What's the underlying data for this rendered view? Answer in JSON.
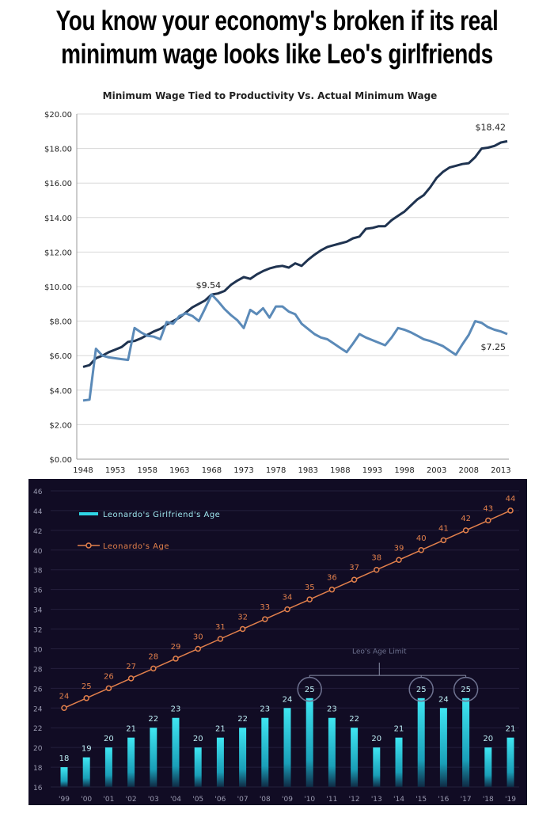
{
  "headline": {
    "line1": "You know your economy's broken if its real",
    "line2": "minimum wage looks like Leo's girlfriends"
  },
  "chart_data": [
    {
      "type": "line",
      "title": "Minimum Wage Tied to Productivity Vs. Actual Minimum Wage",
      "xlabel": "",
      "ylabel": "",
      "ylim": [
        0,
        20
      ],
      "xlim": [
        1948,
        2014
      ],
      "y_ticks": [
        "$0.00",
        "$2.00",
        "$4.00",
        "$6.00",
        "$8.00",
        "$10.00",
        "$12.00",
        "$14.00",
        "$16.00",
        "$18.00",
        "$20.00"
      ],
      "x_ticks": [
        "1948",
        "1953",
        "1958",
        "1963",
        "1968",
        "1973",
        "1978",
        "1983",
        "1988",
        "1993",
        "1998",
        "2003",
        "2008",
        "2013"
      ],
      "grid": true,
      "x_start": 1948,
      "colors": {
        "productivity": "#1f3350",
        "actual": "#5b8ab8"
      },
      "series": [
        {
          "key": "productivity",
          "values": [
            5.35,
            5.45,
            5.85,
            6.0,
            6.2,
            6.35,
            6.5,
            6.8,
            6.85,
            7.0,
            7.2,
            7.4,
            7.55,
            7.8,
            8.0,
            8.2,
            8.5,
            8.8,
            9.0,
            9.2,
            9.54,
            9.6,
            9.75,
            10.1,
            10.35,
            10.55,
            10.45,
            10.7,
            10.9,
            11.05,
            11.15,
            11.2,
            11.1,
            11.35,
            11.2,
            11.55,
            11.85,
            12.1,
            12.3,
            12.4,
            12.5,
            12.6,
            12.8,
            12.9,
            13.35,
            13.4,
            13.5,
            13.5,
            13.85,
            14.1,
            14.35,
            14.7,
            15.05,
            15.3,
            15.75,
            16.3,
            16.65,
            16.9,
            17.0,
            17.1,
            17.15,
            17.5,
            18.0,
            18.05,
            18.15,
            18.35,
            18.42
          ]
        },
        {
          "key": "actual",
          "values": [
            3.4,
            3.45,
            6.4,
            6.0,
            5.9,
            5.85,
            5.8,
            5.75,
            7.6,
            7.35,
            7.15,
            7.1,
            6.95,
            7.95,
            7.85,
            8.3,
            8.45,
            8.3,
            8.0,
            8.75,
            9.54,
            9.15,
            8.7,
            8.35,
            8.05,
            7.6,
            8.65,
            8.4,
            8.75,
            8.2,
            8.85,
            8.85,
            8.55,
            8.4,
            7.85,
            7.55,
            7.25,
            7.05,
            6.95,
            6.7,
            6.45,
            6.2,
            6.7,
            7.25,
            7.05,
            6.9,
            6.75,
            6.6,
            7.05,
            7.6,
            7.5,
            7.35,
            7.15,
            6.95,
            6.85,
            6.7,
            6.55,
            6.3,
            6.05,
            6.65,
            7.2,
            8.0,
            7.9,
            7.65,
            7.5,
            7.4,
            7.25
          ]
        }
      ],
      "annotations": [
        {
          "text": "$9.54",
          "x": 1968,
          "y": 9.54
        },
        {
          "text": "$18.42",
          "x": 2014,
          "y": 18.42
        },
        {
          "text": "$7.25",
          "x": 2014,
          "y": 7.25
        }
      ]
    },
    {
      "type": "bar",
      "title": "",
      "ylim": [
        16,
        46
      ],
      "y_ticks": [
        "16",
        "18",
        "20",
        "22",
        "24",
        "26",
        "28",
        "30",
        "32",
        "34",
        "36",
        "38",
        "40",
        "42",
        "44",
        "46"
      ],
      "categories": [
        "'99",
        "'00",
        "'01",
        "'02",
        "'03",
        "'04",
        "'05",
        "'06",
        "'07",
        "'08",
        "'09",
        "'10",
        "'11",
        "'12",
        "'13",
        "'14",
        "'15",
        "'16",
        "'17",
        "'18",
        "'19"
      ],
      "grid": true,
      "legend": "top-left",
      "background": "#110c24",
      "colors": {
        "bar": "#2fd6e6",
        "line": "#e2804c",
        "annotation": "#8a90a8"
      },
      "series": [
        {
          "name": "Leonardo's Girlfriend's Age",
          "type": "bar",
          "values": [
            18,
            19,
            20,
            21,
            22,
            23,
            20,
            21,
            22,
            23,
            24,
            25,
            23,
            22,
            20,
            21,
            25,
            24,
            25,
            20,
            21
          ]
        },
        {
          "name": "Leonardo's Age",
          "type": "line",
          "values": [
            24,
            25,
            26,
            27,
            28,
            29,
            30,
            31,
            32,
            33,
            34,
            35,
            36,
            37,
            38,
            39,
            40,
            41,
            42,
            43,
            44
          ]
        }
      ],
      "annotation": {
        "text": "Leo's Age Limit",
        "highlighted_categories": [
          "'10",
          "'15",
          "'17"
        ]
      }
    }
  ]
}
